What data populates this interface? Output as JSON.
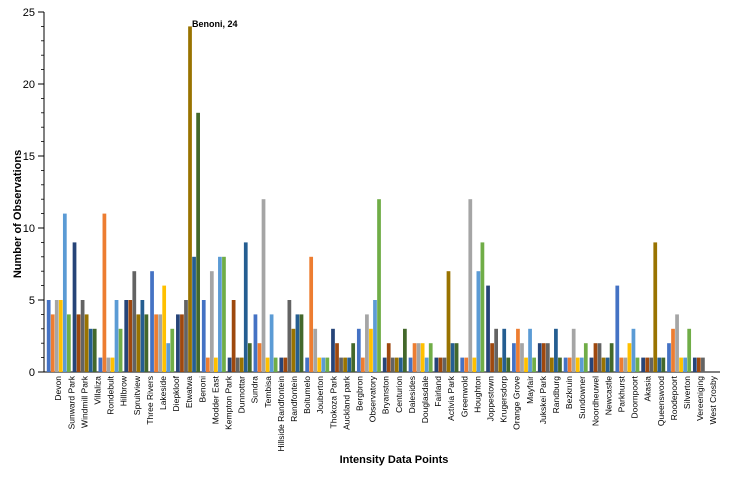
{
  "chart_data": {
    "type": "bar",
    "title": "",
    "xlabel": "Intensity Data Points",
    "ylabel": "Number of Observations",
    "ylim": [
      0,
      25
    ],
    "yticks": [
      0,
      5,
      10,
      15,
      20,
      25
    ],
    "grid": false,
    "legend": "none",
    "annotation": "Benoni, 24",
    "colors": [
      "#4472C4",
      "#ED7D31",
      "#A5A5A5",
      "#FFC000",
      "#5B9BD5",
      "#70AD47",
      "#264478",
      "#9E480E",
      "#636363",
      "#997300",
      "#255E91",
      "#43682B"
    ],
    "category_labels": [
      "Devon",
      "Sunward Park",
      "Windmill Park",
      "Villaliza",
      "Rondebult",
      "Hillbrow",
      "Spruitview",
      "Three Rivers",
      "Lakeside",
      "Diepkloof",
      "Etwatwa",
      "Benoni",
      "Modder East",
      "Kempton Park",
      "Dunnottar",
      "Sundra",
      "Tembisa",
      "Hillside Randfontein",
      "Randfontein",
      "Boitumelo",
      "Jouberton",
      "Thokoza Park",
      "Auckland park",
      "Bergbron",
      "Observatory",
      "Bryanston",
      "Centurion",
      "Dalesides",
      "Douglasdale",
      "Fairland",
      "Activia Park",
      "Greenwold",
      "Houghton",
      "Joppestown",
      "Krugersdorp",
      "Orange Grove",
      "Mayfair",
      "Jukskei Park",
      "Randburg",
      "Bezkruin",
      "Sundowner",
      "Noordheuwel",
      "Newcastle",
      "Parkhurst",
      "Doornpoort",
      "Akasia",
      "Queenswood",
      "Roodepoort",
      "Silverton",
      "Vereeniging",
      "West Crosby"
    ],
    "groups": [
      [
        5,
        4,
        5,
        5,
        11,
        4
      ],
      [
        9,
        4,
        5,
        4,
        3,
        3
      ],
      [
        1,
        11,
        1,
        1,
        5,
        3
      ],
      [
        5,
        5,
        7,
        4,
        5,
        4
      ],
      [
        7,
        4,
        4,
        6,
        2,
        3
      ],
      [
        4,
        4,
        5,
        24,
        8,
        18
      ],
      [
        5,
        1,
        7,
        1,
        8,
        8
      ],
      [
        1,
        5,
        1,
        1,
        9,
        2
      ],
      [
        4,
        2,
        12,
        1,
        4,
        1
      ],
      [
        1,
        1,
        5,
        3,
        4,
        4
      ],
      [
        1,
        8,
        3,
        1,
        1,
        1
      ],
      [
        3,
        2,
        1,
        1,
        1,
        2
      ],
      [
        3,
        1,
        4,
        3,
        5,
        12
      ],
      [
        1,
        2,
        1,
        1,
        1,
        3
      ],
      [
        1,
        2,
        2,
        2,
        1,
        2
      ],
      [
        1,
        1,
        1,
        7,
        2,
        2
      ],
      [
        1,
        1,
        12,
        1,
        7,
        9
      ],
      [
        6,
        2,
        3,
        1,
        3,
        1
      ],
      [
        2,
        3,
        2,
        1,
        3,
        1
      ],
      [
        2,
        2,
        2,
        1,
        3,
        1
      ],
      [
        1,
        1,
        3,
        1,
        1,
        2
      ],
      [
        1,
        2,
        2,
        1,
        1,
        2
      ],
      [
        6,
        1,
        1,
        2,
        3,
        1
      ],
      [
        1,
        1,
        1,
        9,
        1,
        1
      ],
      [
        2,
        3,
        4,
        1,
        1,
        3
      ],
      [
        1,
        1,
        1
      ]
    ]
  }
}
